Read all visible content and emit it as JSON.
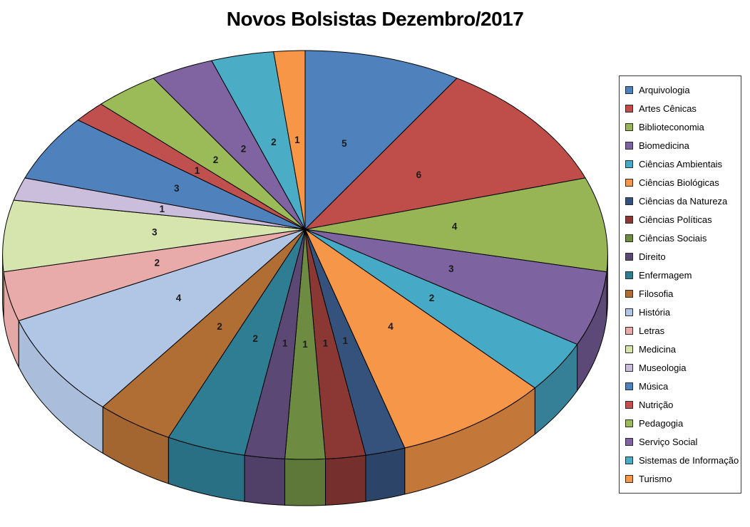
{
  "title": "Novos Bolsistas Dezembro/2017",
  "chart_data": {
    "type": "pie",
    "style": "3d-perspective",
    "title": "Novos Bolsistas Dezembro/2017",
    "start_angle_deg": 0,
    "direction": "clockwise",
    "total": 53,
    "labels_shown": "values",
    "legend_position": "right",
    "label_color": "#1a1a1a",
    "slice_border_color": "#000000",
    "categories": [
      "Arquivologia",
      "Artes Cênicas",
      "Biblioteconomia",
      "Biomedicina",
      "Ciências Ambientais",
      "Ciências Biológicas",
      "Ciências da Natureza",
      "Ciências Políticas",
      "Ciências Sociais",
      "Direito",
      "Enfermagem",
      "Filosofia",
      "História",
      "Letras",
      "Medicina",
      "Museologia",
      "Música",
      "Nutrição",
      "Pedagogia",
      "Serviço Social",
      "Sistemas de Informação",
      "Turismo"
    ],
    "values": [
      5,
      6,
      4,
      3,
      2,
      4,
      1,
      1,
      1,
      1,
      2,
      2,
      4,
      2,
      3,
      1,
      3,
      1,
      2,
      2,
      2,
      1
    ],
    "colors": [
      "#4F81BD",
      "#BF4E4B",
      "#98B556",
      "#7E63A1",
      "#46A9C5",
      "#F69648",
      "#35527C",
      "#8B3835",
      "#6D8C42",
      "#5B4875",
      "#2E7D93",
      "#B06E35",
      "#B1C6E5",
      "#E8ABA9",
      "#D6E4AE",
      "#CBBDDC",
      "#4F81BD",
      "#C0504D",
      "#9BBB59",
      "#8064A2",
      "#4BACC6",
      "#F79646"
    ]
  },
  "legend": {
    "border_color": "#3a3a3a",
    "background": "#ffffff"
  }
}
